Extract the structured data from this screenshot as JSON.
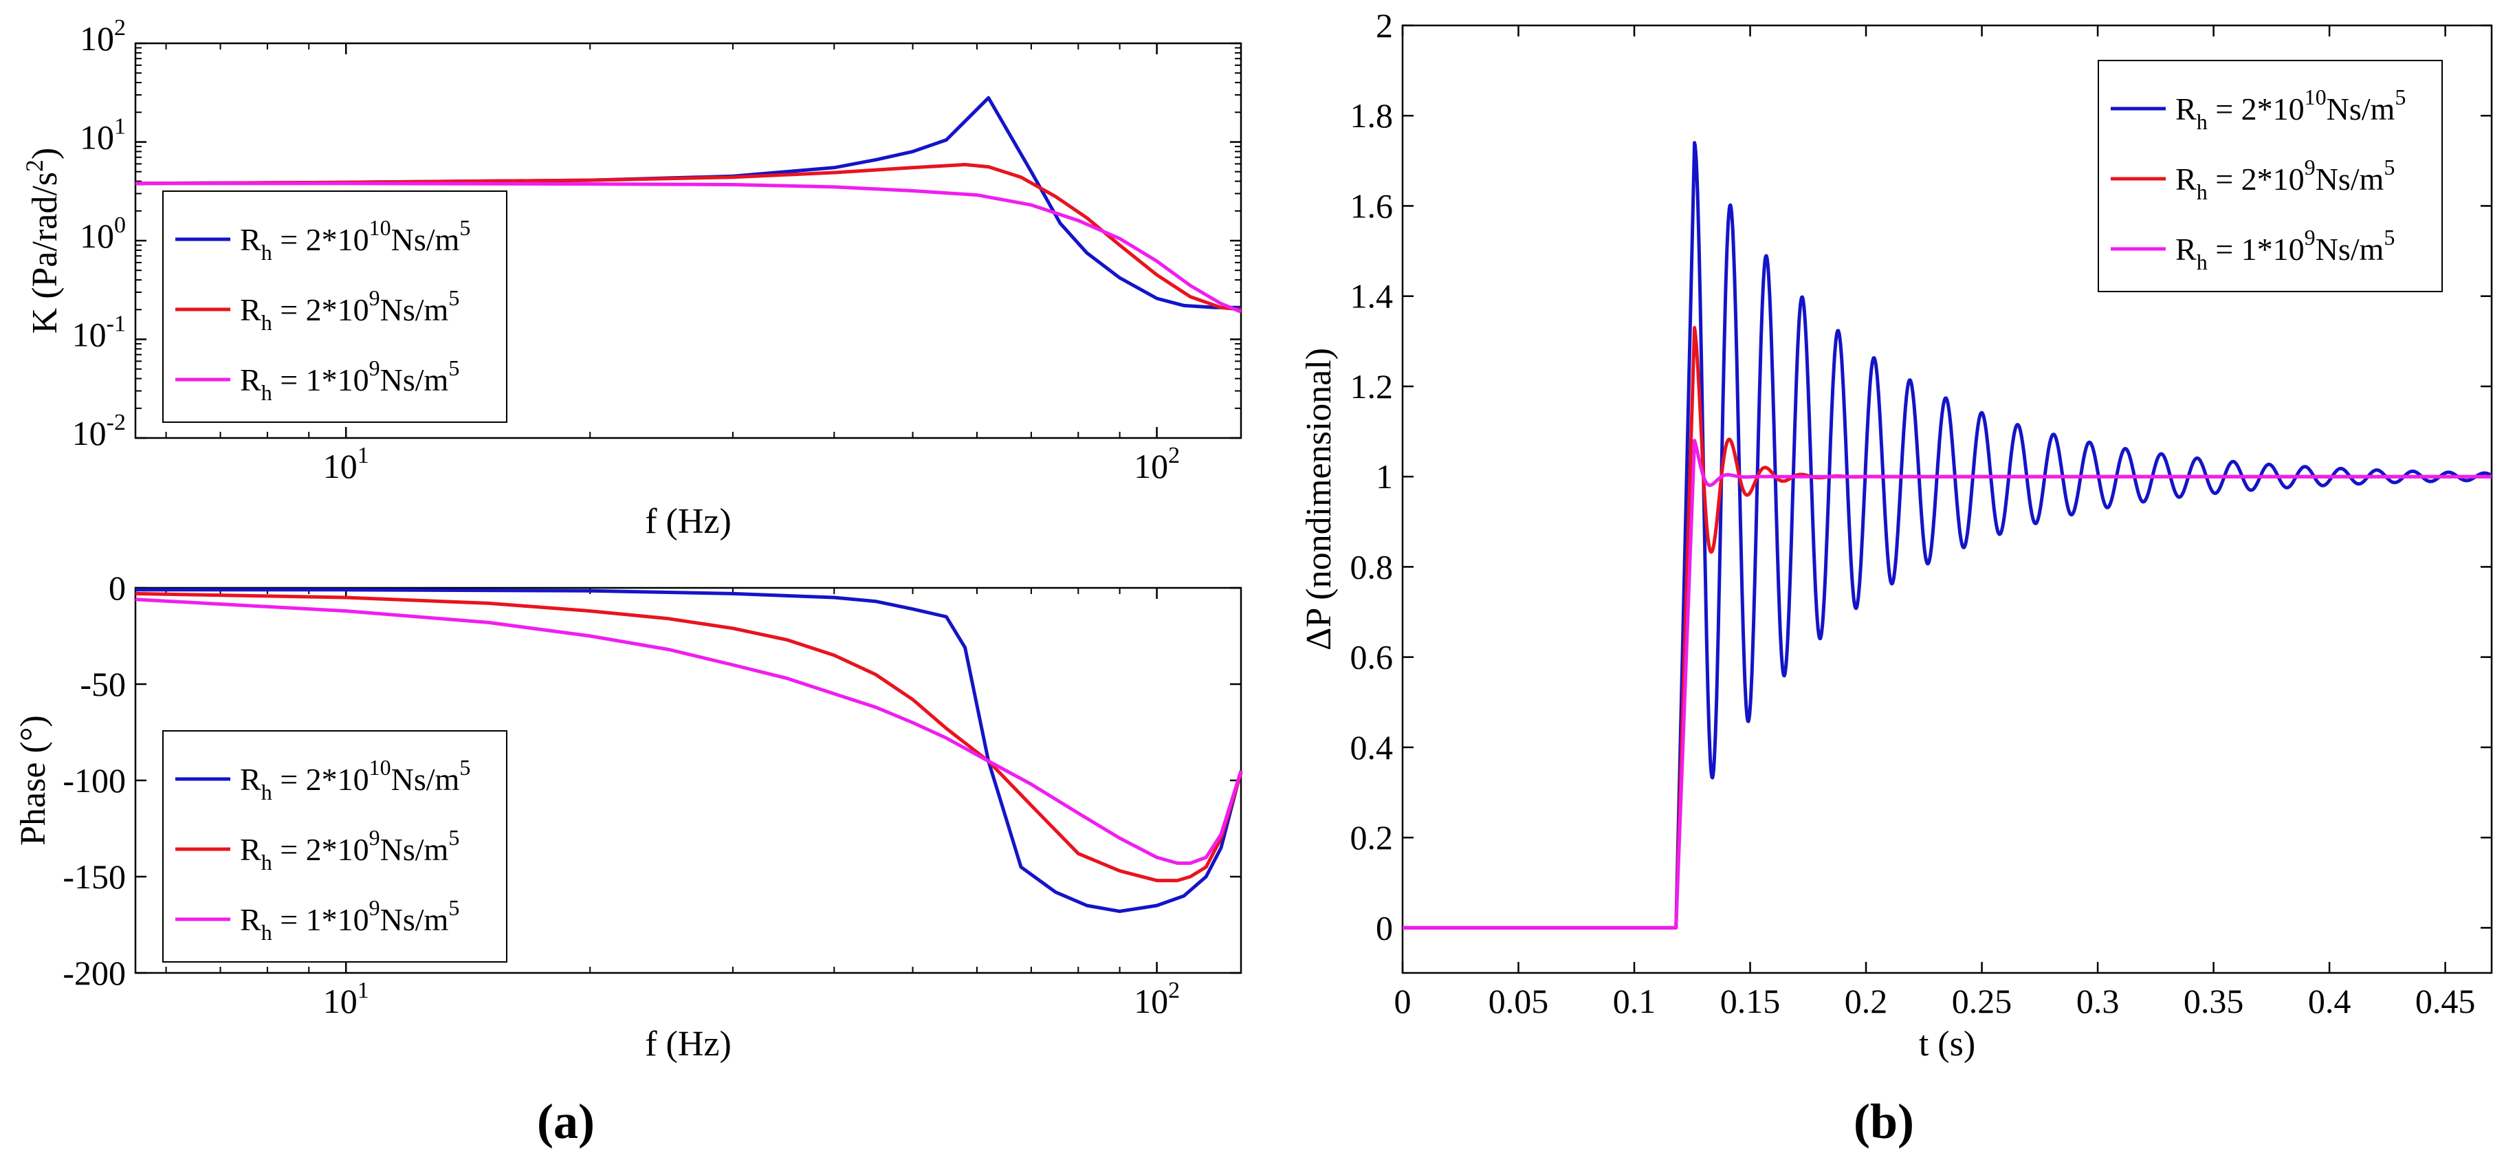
{
  "panel_labels": {
    "a": "(a)",
    "b": "(b)"
  },
  "legend": {
    "rh_symbol": "R",
    "rh_sub": "h",
    "units": "Ns/m",
    "units_exp": "5",
    "entries": [
      {
        "coef": " = 2*10",
        "exp": "10",
        "color": "#1414c8"
      },
      {
        "coef": " = 2*10",
        "exp": "9",
        "color": "#e8141e"
      },
      {
        "coef": " = 1*10",
        "exp": "9",
        "color": "#f01ef0"
      }
    ]
  },
  "chart_data": [
    {
      "id": "magnitude",
      "type": "line",
      "xscale": "log",
      "yscale": "log",
      "xlim": [
        5.5,
        127
      ],
      "ylim": [
        0.01,
        100
      ],
      "xlabel": "f (Hz)",
      "ylabel": "K (Pa/rad/s²)",
      "ylabel_main": "K (Pa/rad/s",
      "ylabel_exp": "2",
      "ylabel_tail": ")",
      "xticks": [
        {
          "value": 10,
          "base": "10",
          "exp": "1"
        },
        {
          "value": 100,
          "base": "10",
          "exp": "2"
        }
      ],
      "yticks": [
        {
          "value": 0.01,
          "base": "10",
          "exp": "-2"
        },
        {
          "value": 0.1,
          "base": "10",
          "exp": "-1"
        },
        {
          "value": 1,
          "base": "10",
          "exp": "0"
        },
        {
          "value": 10,
          "base": "10",
          "exp": "1"
        },
        {
          "value": 100,
          "base": "10",
          "exp": "2"
        }
      ],
      "legend_position": "lower-left",
      "series": [
        {
          "name": "Rh = 2*10^10 Ns/m^5",
          "color": "#1414c8",
          "points": [
            [
              5.5,
              3.8
            ],
            [
              10,
              3.9
            ],
            [
              20,
              4.1
            ],
            [
              30,
              4.5
            ],
            [
              40,
              5.5
            ],
            [
              45,
              6.6
            ],
            [
              50,
              8
            ],
            [
              55,
              10.5
            ],
            [
              62,
              28
            ],
            [
              70,
              5
            ],
            [
              76,
              1.5
            ],
            [
              82,
              0.75
            ],
            [
              90,
              0.42
            ],
            [
              100,
              0.26
            ],
            [
              108,
              0.22
            ],
            [
              118,
              0.21
            ],
            [
              127,
              0.21
            ]
          ]
        },
        {
          "name": "Rh = 2*10^9 Ns/m^5",
          "color": "#e8141e",
          "points": [
            [
              5.5,
              3.8
            ],
            [
              10,
              3.9
            ],
            [
              20,
              4.1
            ],
            [
              30,
              4.4
            ],
            [
              40,
              4.9
            ],
            [
              50,
              5.5
            ],
            [
              58,
              5.9
            ],
            [
              62,
              5.6
            ],
            [
              68,
              4.4
            ],
            [
              75,
              2.8
            ],
            [
              82,
              1.7
            ],
            [
              90,
              0.9
            ],
            [
              100,
              0.45
            ],
            [
              110,
              0.27
            ],
            [
              120,
              0.21
            ],
            [
              127,
              0.2
            ]
          ]
        },
        {
          "name": "Rh = 1*10^9 Ns/m^5",
          "color": "#f01ef0",
          "points": [
            [
              5.5,
              3.8
            ],
            [
              10,
              3.8
            ],
            [
              20,
              3.75
            ],
            [
              30,
              3.7
            ],
            [
              40,
              3.5
            ],
            [
              50,
              3.2
            ],
            [
              60,
              2.9
            ],
            [
              70,
              2.3
            ],
            [
              80,
              1.6
            ],
            [
              90,
              1.05
            ],
            [
              100,
              0.62
            ],
            [
              110,
              0.35
            ],
            [
              120,
              0.23
            ],
            [
              127,
              0.19
            ]
          ]
        }
      ]
    },
    {
      "id": "phase",
      "type": "line",
      "xscale": "log",
      "yscale": "linear",
      "xlim": [
        5.5,
        127
      ],
      "ylim": [
        -200,
        0
      ],
      "xlabel": "f (Hz)",
      "ylabel": "Phase (°)",
      "xticks": [
        {
          "value": 10,
          "base": "10",
          "exp": "1"
        },
        {
          "value": 100,
          "base": "10",
          "exp": "2"
        }
      ],
      "yticks": [
        {
          "value": 0,
          "label": "0"
        },
        {
          "value": -50,
          "label": "-50"
        },
        {
          "value": -100,
          "label": "-100"
        },
        {
          "value": -150,
          "label": "-150"
        },
        {
          "value": -200,
          "label": "-200"
        }
      ],
      "legend_position": "lower-left",
      "series": [
        {
          "name": "Rh = 2*10^10 Ns/m^5",
          "color": "#1414c8",
          "points": [
            [
              5.5,
              -1
            ],
            [
              10,
              -1
            ],
            [
              20,
              -1.5
            ],
            [
              30,
              -3
            ],
            [
              40,
              -5
            ],
            [
              45,
              -7
            ],
            [
              50,
              -11
            ],
            [
              55,
              -15
            ],
            [
              58,
              -31
            ],
            [
              62,
              -90
            ],
            [
              68,
              -145
            ],
            [
              75,
              -158
            ],
            [
              82,
              -165
            ],
            [
              90,
              -168
            ],
            [
              100,
              -165
            ],
            [
              108,
              -160
            ],
            [
              115,
              -150
            ],
            [
              120,
              -135
            ],
            [
              127,
              -95
            ]
          ]
        },
        {
          "name": "Rh = 2*10^9 Ns/m^5",
          "color": "#e8141e",
          "points": [
            [
              5.5,
              -3
            ],
            [
              10,
              -5
            ],
            [
              15,
              -8
            ],
            [
              20,
              -12
            ],
            [
              25,
              -16
            ],
            [
              30,
              -21
            ],
            [
              35,
              -27
            ],
            [
              40,
              -35
            ],
            [
              45,
              -45
            ],
            [
              50,
              -58
            ],
            [
              55,
              -73
            ],
            [
              62,
              -90
            ],
            [
              70,
              -113
            ],
            [
              80,
              -138
            ],
            [
              90,
              -147
            ],
            [
              100,
              -152
            ],
            [
              106,
              -152
            ],
            [
              110,
              -150
            ],
            [
              115,
              -145
            ],
            [
              120,
              -130
            ],
            [
              127,
              -96
            ]
          ]
        },
        {
          "name": "Rh = 1*10^9 Ns/m^5",
          "color": "#f01ef0",
          "points": [
            [
              5.5,
              -6
            ],
            [
              10,
              -12
            ],
            [
              15,
              -18
            ],
            [
              20,
              -25
            ],
            [
              25,
              -32
            ],
            [
              30,
              -40
            ],
            [
              35,
              -47
            ],
            [
              40,
              -55
            ],
            [
              45,
              -62
            ],
            [
              50,
              -70
            ],
            [
              55,
              -78
            ],
            [
              62,
              -90
            ],
            [
              70,
              -102
            ],
            [
              80,
              -117
            ],
            [
              90,
              -130
            ],
            [
              100,
              -140
            ],
            [
              106,
              -143
            ],
            [
              110,
              -143
            ],
            [
              115,
              -140
            ],
            [
              120,
              -128
            ],
            [
              127,
              -95
            ]
          ]
        }
      ]
    },
    {
      "id": "step-response",
      "type": "line",
      "xscale": "linear",
      "yscale": "linear",
      "xlim": [
        0,
        0.47
      ],
      "ylim": [
        -0.1,
        2
      ],
      "xlabel": "t (s)",
      "ylabel": "ΔP (nondimensional)",
      "xticks": [
        {
          "value": 0,
          "label": "0"
        },
        {
          "value": 0.05,
          "label": "0.05"
        },
        {
          "value": 0.1,
          "label": "0.1"
        },
        {
          "value": 0.15,
          "label": "0.15"
        },
        {
          "value": 0.2,
          "label": "0.2"
        },
        {
          "value": 0.25,
          "label": "0.25"
        },
        {
          "value": 0.3,
          "label": "0.3"
        },
        {
          "value": 0.35,
          "label": "0.35"
        },
        {
          "value": 0.4,
          "label": "0.4"
        },
        {
          "value": 0.45,
          "label": "0.45"
        }
      ],
      "yticks": [
        {
          "value": 0,
          "label": "0"
        },
        {
          "value": 0.2,
          "label": "0.2"
        },
        {
          "value": 0.4,
          "label": "0.4"
        },
        {
          "value": 0.6,
          "label": "0.6"
        },
        {
          "value": 0.8,
          "label": "0.8"
        },
        {
          "value": 1,
          "label": "1"
        },
        {
          "value": 1.2,
          "label": "1.2"
        },
        {
          "value": 1.4,
          "label": "1.4"
        },
        {
          "value": 1.6,
          "label": "1.6"
        },
        {
          "value": 1.8,
          "label": "1.8"
        },
        {
          "value": 2,
          "label": "2"
        }
      ],
      "legend_position": "top-right",
      "step_time": 0.118,
      "rise_duration": 0.008,
      "series": [
        {
          "name": "Rh = 2*10^10 Ns/m^5",
          "color": "#1414c8",
          "peak": 1.74,
          "period": 0.0155,
          "decay": 0.075
        },
        {
          "name": "Rh = 2*10^9 Ns/m^5",
          "color": "#e8141e",
          "peak": 1.33,
          "period": 0.0155,
          "decay": 0.011
        },
        {
          "name": "Rh = 1*10^9 Ns/m^5",
          "color": "#f01ef0",
          "peak": 1.08,
          "period": 0.0155,
          "decay": 0.005
        }
      ]
    }
  ]
}
